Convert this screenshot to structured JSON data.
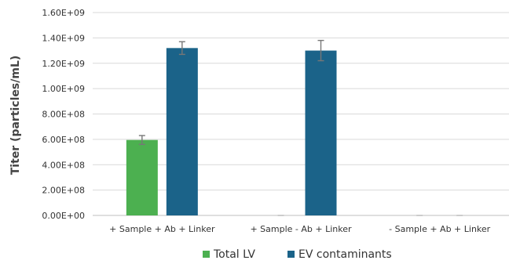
{
  "chart_data": {
    "type": "bar",
    "title": "",
    "xlabel": "",
    "ylabel": "Titer (particles/mL)",
    "ylim": [
      0,
      1600000000.0
    ],
    "yticks": [
      0,
      200000000.0,
      400000000.0,
      600000000.0,
      800000000.0,
      1000000000.0,
      1200000000.0,
      1400000000.0,
      1600000000.0
    ],
    "ytick_labels": [
      "0.00E+00",
      "2.00E+08",
      "4.00E+08",
      "6.00E+08",
      "8.00E+08",
      "1.00E+09",
      "1.20E+09",
      "1.40E+09",
      "1.60E+09"
    ],
    "categories": [
      "+ Sample + Ab + Linker",
      "+ Sample - Ab + Linker",
      "- Sample + Ab + Linker"
    ],
    "series": [
      {
        "name": "Total LV",
        "color": "#4cb050",
        "values": [
          595000000.0,
          0,
          0
        ],
        "errors": [
          35000000.0,
          0,
          0
        ]
      },
      {
        "name": "EV contaminants",
        "color": "#1b6389",
        "values": [
          1320000000.0,
          1300000000.0,
          0
        ],
        "errors": [
          50000000.0,
          80000000.0,
          0
        ]
      }
    ],
    "grid": true,
    "legend_position": "bottom"
  }
}
